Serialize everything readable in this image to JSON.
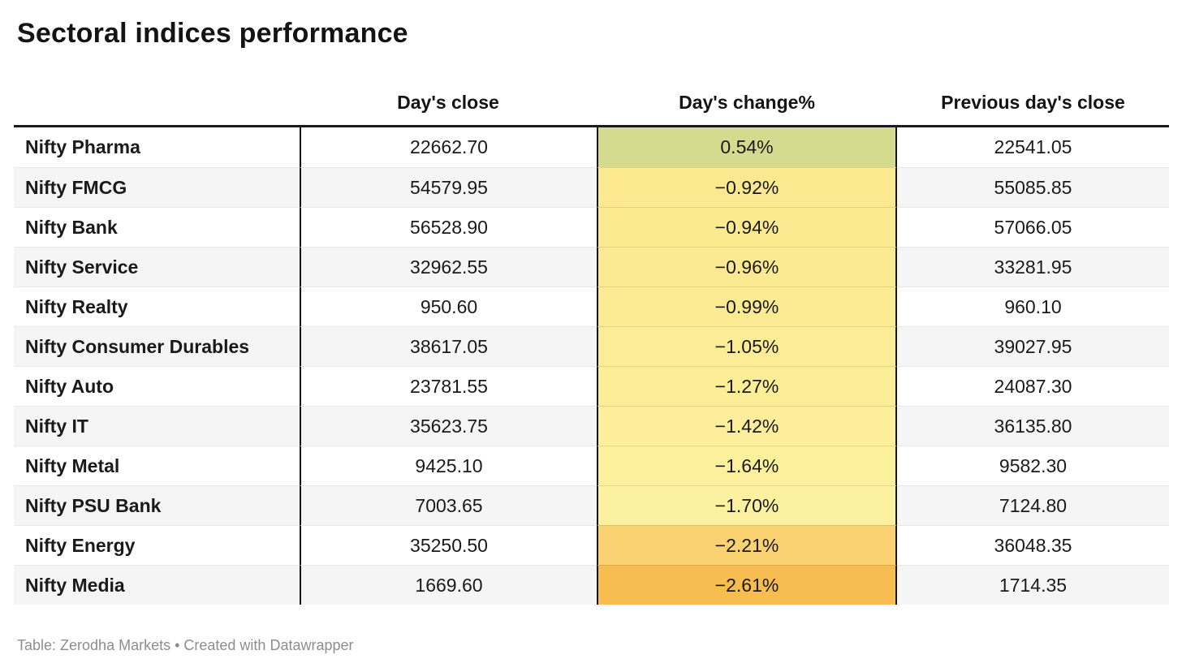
{
  "title": "Sectoral indices performance",
  "table": {
    "columns": [
      "",
      "Day's close",
      "Day's change%",
      "Previous day's close"
    ],
    "rows": [
      {
        "label": "Nifty Pharma",
        "close": "22662.70",
        "change": "0.54%",
        "prev": "22541.05",
        "heat": "#d6da8e"
      },
      {
        "label": "Nifty FMCG",
        "close": "54579.95",
        "change": "−0.92%",
        "prev": "55085.85",
        "heat": "#fce98f"
      },
      {
        "label": "Nifty Bank",
        "close": "56528.90",
        "change": "−0.94%",
        "prev": "57066.05",
        "heat": "#fcea90"
      },
      {
        "label": "Nifty Service",
        "close": "32962.55",
        "change": "−0.96%",
        "prev": "33281.95",
        "heat": "#fcea92"
      },
      {
        "label": "Nifty Realty",
        "close": "950.60",
        "change": "−0.99%",
        "prev": "960.10",
        "heat": "#fceb93"
      },
      {
        "label": "Nifty Consumer Durables",
        "close": "38617.05",
        "change": "−1.05%",
        "prev": "39027.95",
        "heat": "#fcec95"
      },
      {
        "label": "Nifty Auto",
        "close": "23781.55",
        "change": "−1.27%",
        "prev": "24087.30",
        "heat": "#fced97"
      },
      {
        "label": "Nifty IT",
        "close": "35623.75",
        "change": "−1.42%",
        "prev": "36135.80",
        "heat": "#fcee9a"
      },
      {
        "label": "Nifty Metal",
        "close": "9425.10",
        "change": "−1.64%",
        "prev": "9582.30",
        "heat": "#fcf09d"
      },
      {
        "label": "Nifty PSU Bank",
        "close": "7003.65",
        "change": "−1.70%",
        "prev": "7124.80",
        "heat": "#fcf1a0"
      },
      {
        "label": "Nifty Energy",
        "close": "35250.50",
        "change": "−2.21%",
        "prev": "36048.35",
        "heat": "#fad271"
      },
      {
        "label": "Nifty Media",
        "close": "1669.60",
        "change": "−2.61%",
        "prev": "1714.35",
        "heat": "#f7bd51"
      }
    ]
  },
  "footer": {
    "text": "Table: Zerodha Markets • Created with Datawrapper"
  },
  "colors": {
    "header_rule": "#1a1a1a",
    "row_alt": "#f5f5f5",
    "row_separator": "#e8e8e8",
    "footer_text": "#8d8d8d",
    "heat_positive": "#d6da8e",
    "heat_mild_negative": "#fcea92",
    "heat_strong_negative": "#f7bd51"
  },
  "chart_data": {
    "type": "table",
    "title": "Sectoral indices performance",
    "columns": [
      "",
      "Day's close",
      "Day's change%",
      "Previous day's close"
    ],
    "heatmap_column": "Day's change%",
    "rows": [
      [
        "Nifty Pharma",
        22662.7,
        0.54,
        22541.05
      ],
      [
        "Nifty FMCG",
        54579.95,
        -0.92,
        55085.85
      ],
      [
        "Nifty Bank",
        56528.9,
        -0.94,
        57066.05
      ],
      [
        "Nifty Service",
        32962.55,
        -0.96,
        33281.95
      ],
      [
        "Nifty Realty",
        950.6,
        -0.99,
        960.1
      ],
      [
        "Nifty Consumer Durables",
        38617.05,
        -1.05,
        39027.95
      ],
      [
        "Nifty Auto",
        23781.55,
        -1.27,
        24087.3
      ],
      [
        "Nifty IT",
        35623.75,
        -1.42,
        36135.8
      ],
      [
        "Nifty Metal",
        9425.1,
        -1.64,
        9582.3
      ],
      [
        "Nifty PSU Bank",
        7003.65,
        -1.7,
        7124.8
      ],
      [
        "Nifty Energy",
        35250.5,
        -2.21,
        36048.35
      ],
      [
        "Nifty Media",
        1669.6,
        -2.61,
        1714.35
      ]
    ],
    "source_note": "Table: Zerodha Markets • Created with Datawrapper"
  }
}
